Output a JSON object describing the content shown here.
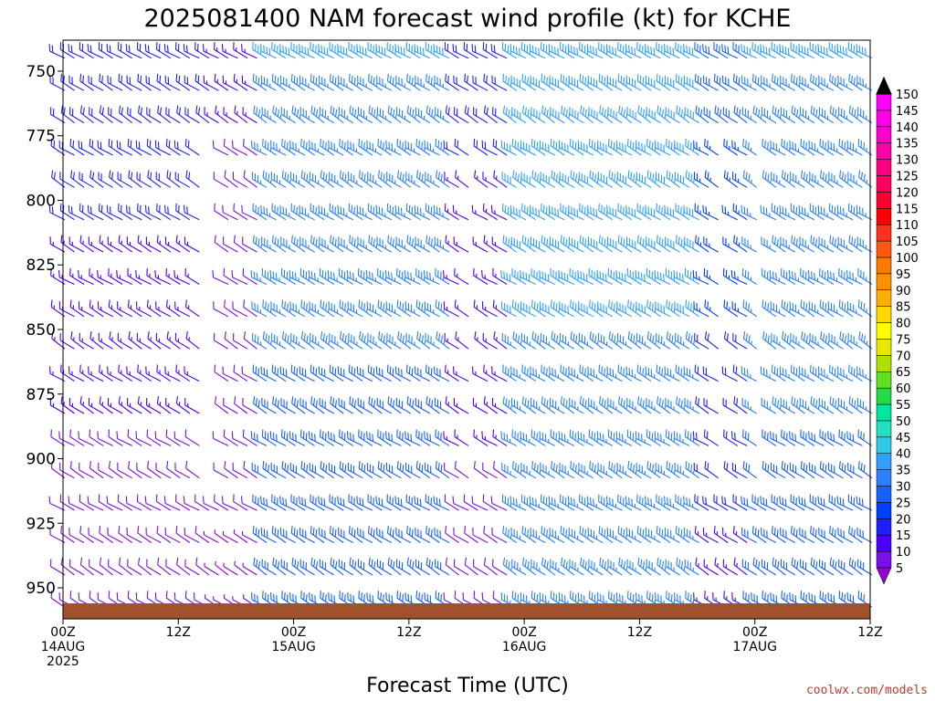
{
  "chart_data": {
    "type": "wind-barb-time-height",
    "title": "2025081400 NAM forecast wind profile (kt) for KCHE",
    "xlabel": "Forecast Time (UTC)",
    "credit": "coolwx.com/models",
    "y_axis": {
      "label": "",
      "reversed": true,
      "range_hPa": [
        738,
        962
      ],
      "ticks": [
        750,
        775,
        800,
        825,
        850,
        875,
        900,
        925,
        950
      ]
    },
    "x_axis": {
      "range_hours": [
        0,
        84
      ],
      "ticks": [
        {
          "hour": 0,
          "time": "00Z",
          "date": "14AUG",
          "year": "2025"
        },
        {
          "hour": 12,
          "time": "12Z",
          "date": "",
          "year": ""
        },
        {
          "hour": 24,
          "time": "00Z",
          "date": "15AUG",
          "year": ""
        },
        {
          "hour": 36,
          "time": "12Z",
          "date": "",
          "year": ""
        },
        {
          "hour": 48,
          "time": "00Z",
          "date": "16AUG",
          "year": ""
        },
        {
          "hour": 60,
          "time": "12Z",
          "date": "",
          "year": ""
        },
        {
          "hour": 72,
          "time": "00Z",
          "date": "17AUG",
          "year": ""
        },
        {
          "hour": 84,
          "time": "12Z",
          "date": "",
          "year": ""
        }
      ]
    },
    "forecast_hours": [
      0,
      1,
      2,
      3,
      4,
      5,
      6,
      7,
      8,
      9,
      10,
      11,
      12,
      13,
      14,
      15,
      16,
      17,
      18,
      19,
      20,
      21,
      22,
      23,
      24,
      25,
      26,
      27,
      28,
      29,
      30,
      31,
      32,
      33,
      34,
      35,
      36,
      37,
      38,
      39,
      40,
      41,
      42,
      43,
      44,
      45,
      46,
      47,
      48,
      49,
      50,
      51,
      52,
      53,
      54,
      55,
      56,
      57,
      58,
      59,
      60,
      61,
      62,
      63,
      64,
      65,
      66,
      67,
      68,
      69,
      70,
      71,
      72,
      73,
      74,
      75,
      76,
      77,
      78,
      79,
      80,
      81,
      82,
      83,
      84
    ],
    "pressure_levels_hPa": [
      745,
      757.5,
      770,
      782.5,
      795,
      807.5,
      820,
      832.5,
      845,
      857.5,
      870,
      882.5,
      895,
      907.5,
      920,
      932.5,
      945,
      957.5
    ],
    "wind_speed_kt_ranges": [
      {
        "hours": [
          0,
          15
        ],
        "bottom_kt": 8,
        "top_kt": 22
      },
      {
        "hours": [
          16,
          20
        ],
        "bottom_kt": 6,
        "top_kt": 14
      },
      {
        "hours": [
          21,
          40
        ],
        "bottom_kt": 28,
        "top_kt": 38
      },
      {
        "hours": [
          41,
          46
        ],
        "bottom_kt": 10,
        "top_kt": 20
      },
      {
        "hours": [
          47,
          66
        ],
        "bottom_kt": 35,
        "top_kt": 40
      },
      {
        "hours": [
          67,
          71
        ],
        "bottom_kt": 15,
        "top_kt": 30
      },
      {
        "hours": [
          72,
          84
        ],
        "bottom_kt": 30,
        "top_kt": 38
      }
    ],
    "terrain_surface_hPa": 956,
    "terrain_color": "#a0522d",
    "colorbar": {
      "unit": "kt",
      "levels": [
        5,
        10,
        15,
        20,
        25,
        30,
        35,
        40,
        45,
        50,
        55,
        60,
        65,
        70,
        75,
        80,
        85,
        90,
        95,
        100,
        105,
        110,
        115,
        120,
        125,
        130,
        135,
        140,
        145,
        150
      ],
      "colors": [
        "#9400d3",
        "#7a10e8",
        "#4b00ff",
        "#2020ff",
        "#0040ff",
        "#1a5fff",
        "#2a80ff",
        "#30a0ff",
        "#30c8e8",
        "#20e0c0",
        "#00e6a0",
        "#20dc40",
        "#60e020",
        "#b0e000",
        "#e8e800",
        "#ffff00",
        "#ffd700",
        "#ffb000",
        "#ff9000",
        "#ff7a00",
        "#ff5a10",
        "#ff3020",
        "#ff0000",
        "#ff0030",
        "#ff0060",
        "#ff0080",
        "#ff00a8",
        "#ff00c8",
        "#ff00e8",
        "#ff00ff"
      ]
    }
  }
}
